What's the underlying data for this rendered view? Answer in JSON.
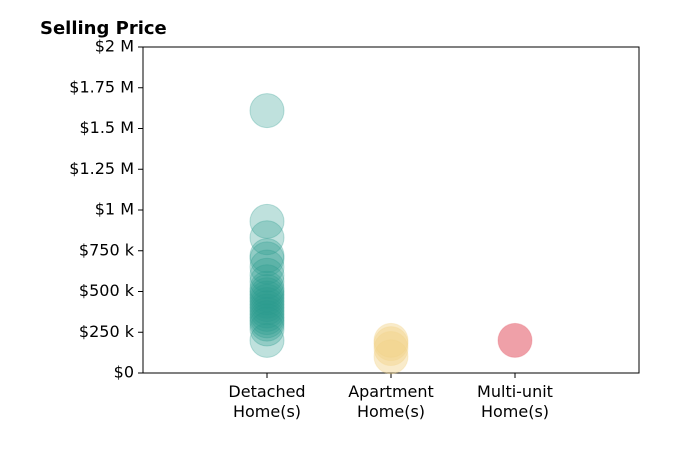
{
  "chart_data": {
    "type": "strip",
    "title": "Selling Price",
    "ylim": [
      0,
      2000000
    ],
    "yticks": [
      {
        "value": 0,
        "label": "$0"
      },
      {
        "value": 250000,
        "label": "$250 k"
      },
      {
        "value": 500000,
        "label": "$500 k"
      },
      {
        "value": 750000,
        "label": "$750 k"
      },
      {
        "value": 1000000,
        "label": "$1 M"
      },
      {
        "value": 1250000,
        "label": "$1.25 M"
      },
      {
        "value": 1500000,
        "label": "$1.5 M"
      },
      {
        "value": 1750000,
        "label": "$1.75 M"
      },
      {
        "value": 2000000,
        "label": "$2 M"
      }
    ],
    "series": [
      {
        "name": "Detached Home(s)",
        "color": "#2a9d8f",
        "values": [
          1610000,
          930000,
          830000,
          720000,
          700000,
          650000,
          600000,
          560000,
          520000,
          500000,
          480000,
          460000,
          440000,
          420000,
          400000,
          380000,
          360000,
          340000,
          320000,
          300000,
          270000,
          200000
        ]
      },
      {
        "name": "Apartment Home(s)",
        "color": "#f1d38a",
        "values": [
          200000,
          180000,
          150000,
          100000
        ]
      },
      {
        "name": "Multi-unit Home(s)",
        "color": "#e5616e",
        "values": [
          200000
        ]
      }
    ]
  }
}
